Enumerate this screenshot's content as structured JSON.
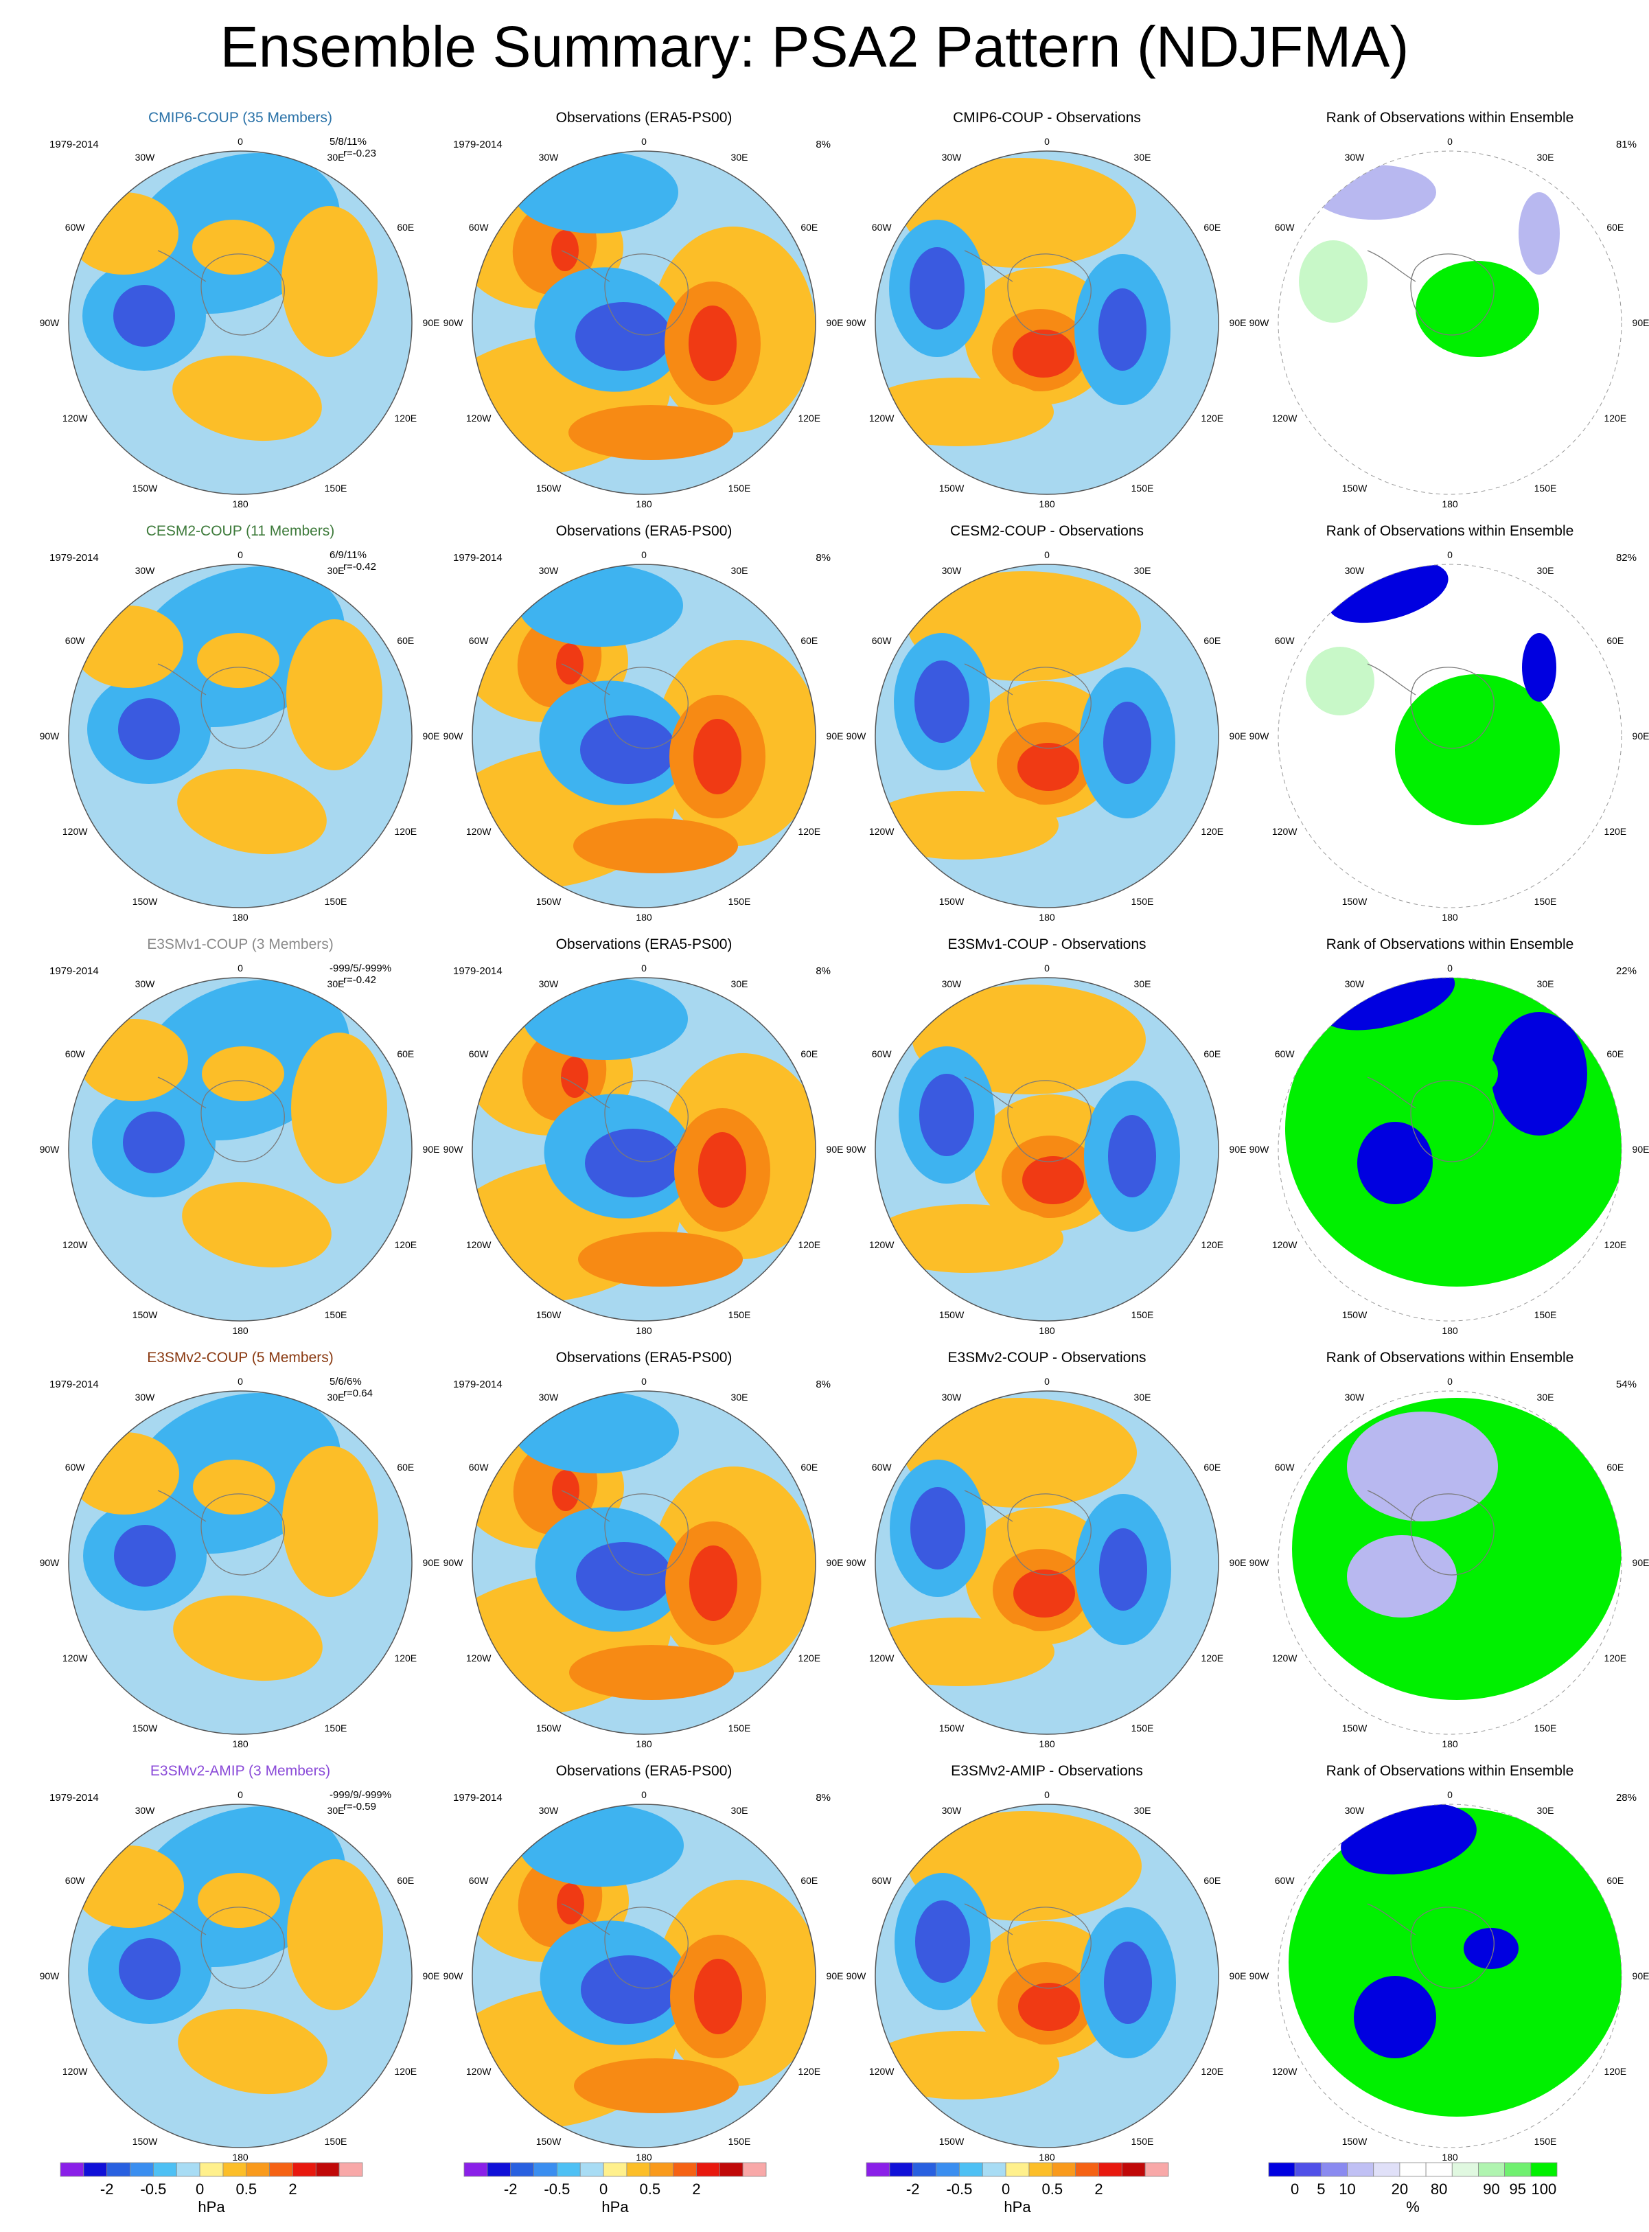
{
  "title": "Ensemble Summary: PSA2 Pattern (NDJFMA)",
  "colors": {
    "neg3": "#2020d0",
    "neg2": "#3a5ae0",
    "neg1": "#3eb3f0",
    "neg0": "#a8d8f0",
    "pos0": "#fff08c",
    "pos1": "#fcbe28",
    "pos2": "#f78a14",
    "pos3": "#f03a14",
    "pos4": "#d00a0a",
    "rank_low": "#0000e0",
    "rank_low_light": "#b8b8f0",
    "rank_high": "#00f000",
    "rank_high_light": "#c8f8c8",
    "coast": "#7a7a7a"
  },
  "map_labels": {
    "lon": [
      "0",
      "30E",
      "60E",
      "90E",
      "120E",
      "150E",
      "180",
      "150W",
      "120W",
      "90W",
      "60W",
      "30W"
    ]
  },
  "rows": [
    {
      "model": {
        "title": "CMIP6-COUP (35 Members)",
        "color": "#2a72a8",
        "period": "1979-2014",
        "stats": "5/8/11%",
        "r": "r=-0.23"
      },
      "obs": {
        "title": "Observations (ERA5-PS00)",
        "period": "1979-2014",
        "pct": "8%"
      },
      "diff": {
        "title": "CMIP6-COUP - Observations"
      },
      "rank": {
        "title": "Rank of Observations within Ensemble",
        "pct": "81%"
      }
    },
    {
      "model": {
        "title": "CESM2-COUP (11 Members)",
        "color": "#3d7a3a",
        "period": "1979-2014",
        "stats": "6/9/11%",
        "r": "r=-0.42"
      },
      "obs": {
        "title": "Observations (ERA5-PS00)",
        "period": "1979-2014",
        "pct": "8%"
      },
      "diff": {
        "title": "CESM2-COUP - Observations"
      },
      "rank": {
        "title": "Rank of Observations within Ensemble",
        "pct": "82%"
      }
    },
    {
      "model": {
        "title": "E3SMv1-COUP (3 Members)",
        "color": "#8a8a8a",
        "period": "1979-2014",
        "stats": "-999/5/-999%",
        "r": "r=-0.42"
      },
      "obs": {
        "title": "Observations (ERA5-PS00)",
        "period": "1979-2014",
        "pct": "8%"
      },
      "diff": {
        "title": "E3SMv1-COUP - Observations"
      },
      "rank": {
        "title": "Rank of Observations within Ensemble",
        "pct": "22%"
      }
    },
    {
      "model": {
        "title": "E3SMv2-COUP (5 Members)",
        "color": "#8a3a12",
        "period": "1979-2014",
        "stats": "5/6/6%",
        "r": "r=0.64"
      },
      "obs": {
        "title": "Observations (ERA5-PS00)",
        "period": "1979-2014",
        "pct": "8%"
      },
      "diff": {
        "title": "E3SMv2-COUP - Observations"
      },
      "rank": {
        "title": "Rank of Observations within Ensemble",
        "pct": "54%"
      }
    },
    {
      "model": {
        "title": "E3SMv2-AMIP (3 Members)",
        "color": "#8a4ad8",
        "period": "1979-2014",
        "stats": "-999/9/-999%",
        "r": "r=-0.59"
      },
      "obs": {
        "title": "Observations (ERA5-PS00)",
        "period": "1979-2014",
        "pct": "8%"
      },
      "diff": {
        "title": "E3SMv2-AMIP - Observations"
      },
      "rank": {
        "title": "Rank of Observations within Ensemble",
        "pct": "28%"
      }
    }
  ],
  "colorbars": {
    "hpa": {
      "colors": [
        "#8a20e8",
        "#1010d8",
        "#2860e0",
        "#3a8ef0",
        "#4ec0f4",
        "#a8dcf4",
        "#fff08c",
        "#fcbe28",
        "#f99a1c",
        "#f56214",
        "#e8180e",
        "#c00808",
        "#f8a8a8"
      ],
      "ticks": [
        "-2",
        "-0.5",
        "0",
        "0.5",
        "2"
      ],
      "units": "hPa"
    },
    "rank": {
      "colors": [
        "#0000e0",
        "#5050e8",
        "#8a8af0",
        "#c0c0f4",
        "#e0e0f8",
        "#ffffff",
        "#ffffff",
        "#e0f8e0",
        "#b0f4b0",
        "#70f070",
        "#00f000"
      ],
      "ticks": [
        "0",
        "5",
        "10",
        "20",
        "80",
        "90",
        "95",
        "100"
      ],
      "units": "%"
    }
  }
}
